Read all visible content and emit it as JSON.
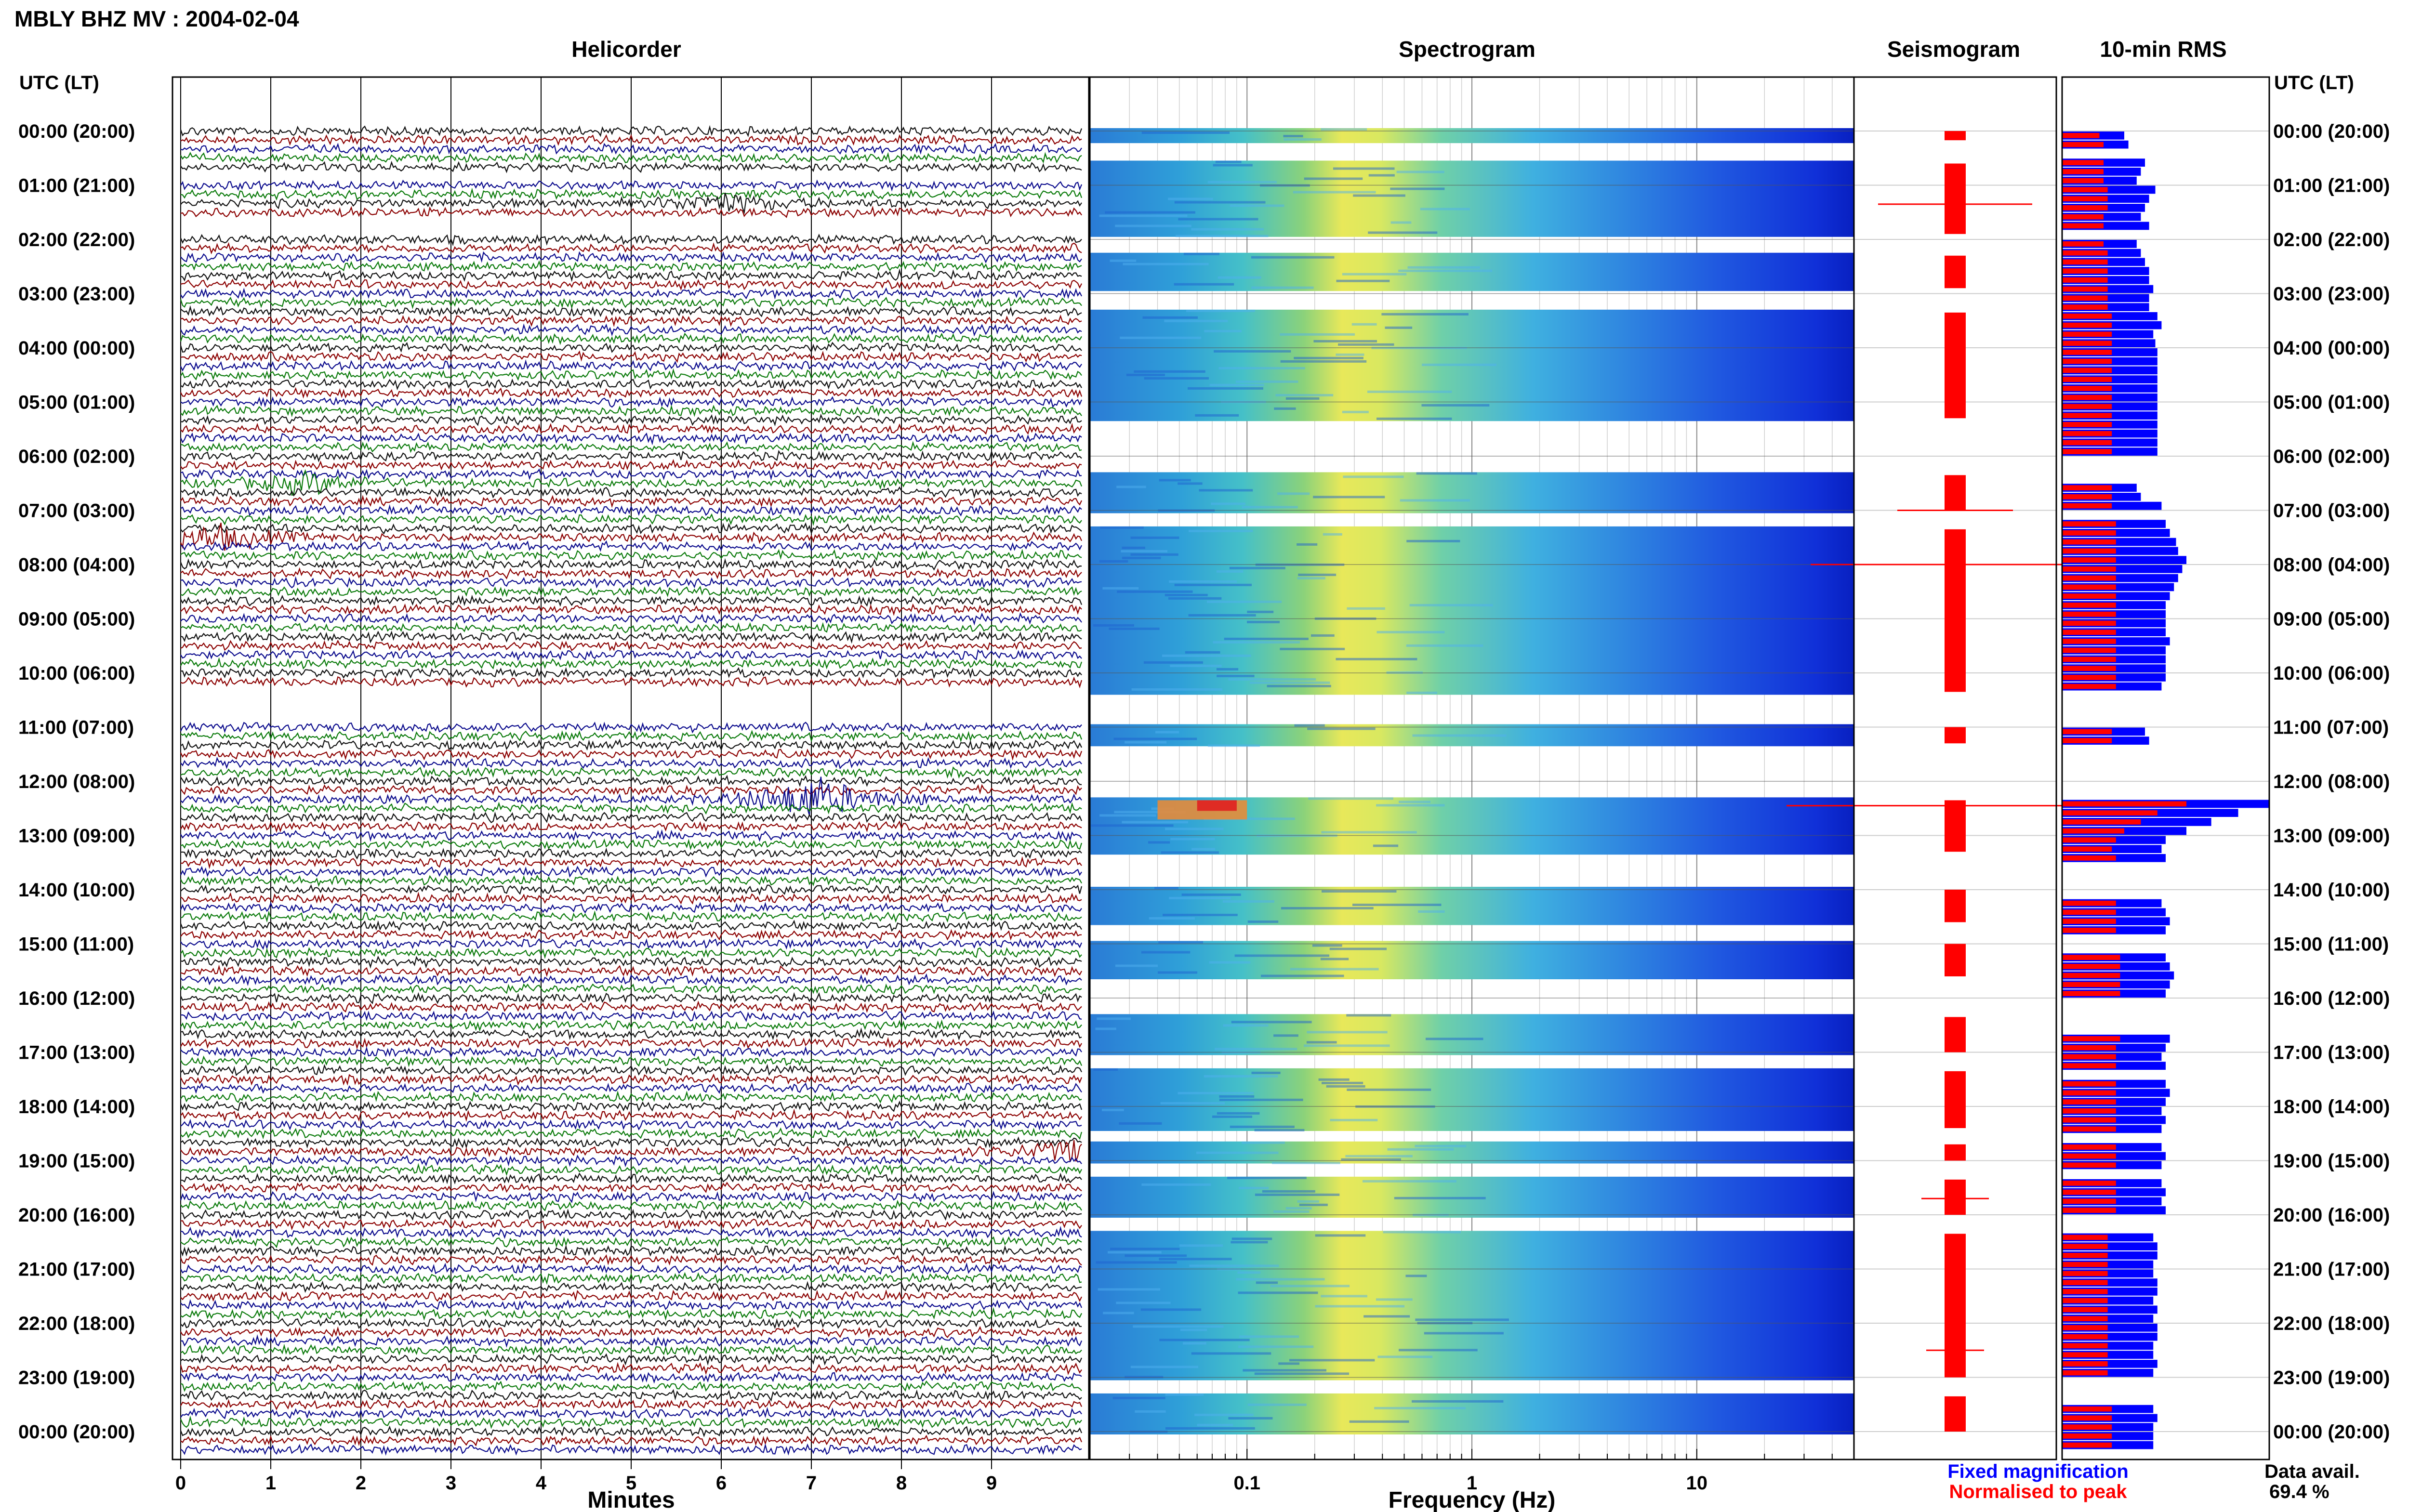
{
  "header": {
    "title": "MBLY BHZ MV : 2004-02-04",
    "axis_time_label": "UTC (LT)"
  },
  "panels": {
    "helicorder_title": "Helicorder",
    "spectrogram_title": "Spectrogram",
    "seismogram_title": "Seismogram",
    "rms_title": "10-min RMS"
  },
  "footer": {
    "minutes_label": "Minutes",
    "frequency_label": "Frequency (Hz)",
    "legend_fixed": "Fixed magnification",
    "legend_normalised": "Normalised to peak",
    "data_avail_label": "Data avail.",
    "data_avail_value": "69.4 %"
  },
  "colors": {
    "trace_black": "#111111",
    "trace_red": "#8b0000",
    "trace_blue": "#0a0a8c",
    "trace_green": "#0a7a0a",
    "rms_blue": "#0000ff",
    "rms_red": "#ff0000",
    "legend_blue": "#0000ff",
    "legend_red": "#ff0000"
  },
  "time_labels": [
    "00:00 (20:00)",
    "01:00 (21:00)",
    "02:00 (22:00)",
    "03:00 (23:00)",
    "04:00 (00:00)",
    "05:00 (01:00)",
    "06:00 (02:00)",
    "07:00 (03:00)",
    "08:00 (04:00)",
    "09:00 (05:00)",
    "10:00 (06:00)",
    "11:00 (07:00)",
    "12:00 (08:00)",
    "13:00 (09:00)",
    "14:00 (10:00)",
    "15:00 (11:00)",
    "16:00 (12:00)",
    "17:00 (13:00)",
    "18:00 (14:00)",
    "19:00 (15:00)",
    "20:00 (16:00)",
    "21:00 (17:00)",
    "22:00 (18:00)",
    "23:00 (19:00)",
    "00:00 (20:00)"
  ],
  "chart_data": [
    {
      "type": "line",
      "name": "helicorder",
      "x_ticks": [
        "0",
        "1",
        "2",
        "3",
        "4",
        "5",
        "6",
        "7",
        "8",
        "9"
      ],
      "xlim": [
        0,
        10
      ],
      "rows_per_hour": 6,
      "data_rows": [
        0,
        1,
        2,
        3,
        4,
        6,
        7,
        8,
        9,
        12,
        13,
        14,
        15,
        16,
        17,
        18,
        19,
        20,
        21,
        22,
        23,
        24,
        25,
        26,
        27,
        28,
        29,
        30,
        31,
        32,
        33,
        34,
        35,
        36,
        37,
        38,
        39,
        40,
        41,
        42,
        43,
        44,
        45,
        46,
        47,
        48,
        49,
        50,
        51,
        52,
        53,
        54,
        55,
        56,
        57,
        58,
        59,
        60,
        61,
        66,
        67,
        68,
        69,
        70,
        71,
        72,
        73,
        74,
        75,
        76,
        77,
        78,
        79,
        80,
        81,
        82,
        83,
        84,
        85,
        86,
        87,
        88,
        89,
        90,
        91,
        92,
        93,
        94,
        95,
        96,
        97,
        98,
        99,
        100,
        101,
        102,
        103,
        104,
        105,
        106,
        107,
        108,
        109,
        110,
        111,
        112,
        113,
        114,
        115,
        116,
        117,
        118,
        119,
        120,
        121,
        122,
        123,
        124,
        125,
        126,
        127,
        128,
        129,
        130,
        131,
        132,
        133,
        134,
        135,
        136,
        137,
        138,
        139,
        140,
        141,
        142,
        143,
        144,
        145,
        146
      ],
      "events": [
        {
          "row": 8,
          "minute": 6.0,
          "amp": 2.5
        },
        {
          "row": 39,
          "minute": 1.4,
          "amp": 2.5
        },
        {
          "row": 45,
          "minute": 0.4,
          "amp": 3
        },
        {
          "row": 74,
          "minute": 7.0,
          "amp": 6
        },
        {
          "row": 113,
          "minute": 9.9,
          "amp": 3
        }
      ]
    },
    {
      "type": "heatmap",
      "name": "spectrogram",
      "x_scale": "log",
      "xlim": [
        0.02,
        50
      ],
      "x_ticks": [
        "0.1",
        "1",
        "10"
      ],
      "xlabel": "Frequency (Hz)",
      "ylim_hours": [
        0,
        24
      ],
      "data_blocks_hours": [
        [
          0.0,
          0.17
        ],
        [
          0.6,
          1.9
        ],
        [
          2.3,
          2.9
        ],
        [
          3.35,
          5.3
        ],
        [
          6.35,
          7.0
        ],
        [
          7.35,
          10.35
        ],
        [
          11.0,
          11.3
        ],
        [
          12.35,
          13.3
        ],
        [
          14.0,
          14.6
        ],
        [
          15.0,
          15.6
        ],
        [
          16.35,
          17.0
        ],
        [
          17.35,
          18.4
        ],
        [
          18.7,
          19.0
        ],
        [
          19.35,
          20.0
        ],
        [
          20.35,
          23.0
        ],
        [
          23.35,
          24.0
        ]
      ]
    },
    {
      "type": "bar",
      "name": "10-min RMS",
      "orientation": "horizontal",
      "series": [
        {
          "name": "Fixed magnification",
          "values": [
            0.3,
            0.32,
            0.0,
            0.4,
            0.38,
            0.36,
            0.45,
            0.42,
            0.4,
            0.38,
            0.42,
            0.0,
            0.36,
            0.38,
            0.4,
            0.42,
            0.42,
            0.44,
            0.42,
            0.42,
            0.46,
            0.48,
            0.44,
            0.45,
            0.46,
            0.46,
            0.46,
            0.46,
            0.46,
            0.46,
            0.46,
            0.46,
            0.46,
            0.46,
            0.46,
            0.46,
            0.0,
            0.0,
            0.0,
            0.36,
            0.38,
            0.48,
            0.0,
            0.5,
            0.52,
            0.55,
            0.56,
            0.6,
            0.58,
            0.56,
            0.54,
            0.52,
            0.5,
            0.5,
            0.5,
            0.5,
            0.52,
            0.5,
            0.5,
            0.5,
            0.5,
            0.48,
            0.0,
            0.0,
            0.0,
            0.0,
            0.4,
            0.42,
            0.0,
            0.0,
            0.0,
            0.0,
            0.0,
            0.0,
            1.0,
            0.85,
            0.72,
            0.6,
            0.5,
            0.48,
            0.5,
            0.0,
            0.0,
            0.0,
            0.0,
            0.48,
            0.5,
            0.52,
            0.5,
            0.0,
            0.0,
            0.5,
            0.52,
            0.54,
            0.52,
            0.5,
            0.0,
            0.0,
            0.0,
            0.0,
            0.52,
            0.5,
            0.48,
            0.5,
            0.0,
            0.5,
            0.52,
            0.5,
            0.48,
            0.5,
            0.48,
            0.0,
            0.48,
            0.5,
            0.48,
            0.0,
            0.48,
            0.5,
            0.48,
            0.5,
            0.0,
            0.0,
            0.44,
            0.46,
            0.46,
            0.44,
            0.44,
            0.46,
            0.46,
            0.44,
            0.46,
            0.44,
            0.46,
            0.46,
            0.44,
            0.44,
            0.46,
            0.44,
            0.0,
            0.0,
            0.0,
            0.44,
            0.46,
            0.44,
            0.44,
            0.44
          ]
        },
        {
          "name": "Normalised to peak",
          "values": [
            0.18,
            0.2,
            0.0,
            0.2,
            0.2,
            0.2,
            0.22,
            0.22,
            0.22,
            0.2,
            0.2,
            0.0,
            0.2,
            0.22,
            0.22,
            0.22,
            0.22,
            0.22,
            0.22,
            0.22,
            0.24,
            0.24,
            0.24,
            0.24,
            0.24,
            0.24,
            0.24,
            0.24,
            0.24,
            0.24,
            0.24,
            0.24,
            0.24,
            0.24,
            0.24,
            0.24,
            0.0,
            0.0,
            0.0,
            0.24,
            0.24,
            0.24,
            0.0,
            0.26,
            0.26,
            0.26,
            0.26,
            0.26,
            0.26,
            0.26,
            0.26,
            0.26,
            0.26,
            0.26,
            0.26,
            0.26,
            0.26,
            0.26,
            0.26,
            0.26,
            0.26,
            0.26,
            0.0,
            0.0,
            0.0,
            0.0,
            0.24,
            0.24,
            0.0,
            0.0,
            0.0,
            0.0,
            0.0,
            0.0,
            0.6,
            0.46,
            0.38,
            0.3,
            0.26,
            0.24,
            0.26,
            0.0,
            0.0,
            0.0,
            0.0,
            0.26,
            0.26,
            0.26,
            0.26,
            0.0,
            0.0,
            0.28,
            0.28,
            0.28,
            0.28,
            0.28,
            0.0,
            0.0,
            0.0,
            0.0,
            0.28,
            0.26,
            0.26,
            0.26,
            0.0,
            0.26,
            0.26,
            0.26,
            0.26,
            0.26,
            0.26,
            0.0,
            0.26,
            0.26,
            0.26,
            0.0,
            0.26,
            0.26,
            0.26,
            0.26,
            0.0,
            0.0,
            0.22,
            0.22,
            0.22,
            0.22,
            0.22,
            0.22,
            0.22,
            0.22,
            0.22,
            0.22,
            0.22,
            0.22,
            0.22,
            0.22,
            0.22,
            0.22,
            0.0,
            0.0,
            0.0,
            0.24,
            0.24,
            0.24,
            0.24,
            0.24
          ]
        }
      ]
    }
  ]
}
